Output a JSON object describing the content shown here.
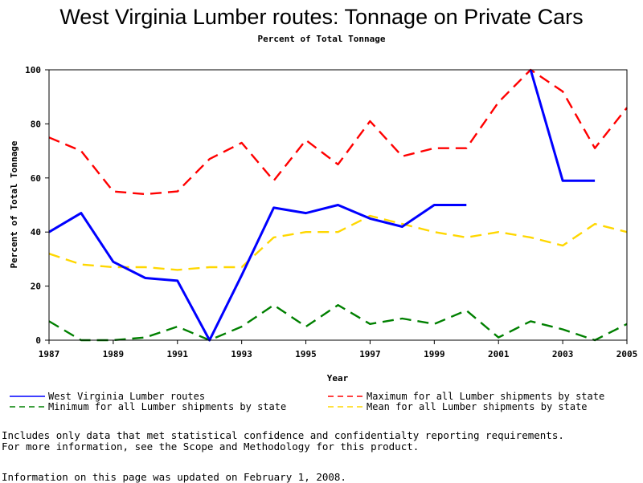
{
  "chart_data": {
    "type": "line",
    "title": "West Virginia Lumber routes: Tonnage on Private Cars",
    "subtitle": "Percent of Total Tonnage",
    "xlabel": "Year",
    "ylabel": "Percent of Total Tonnage",
    "xlim": [
      1987,
      2005
    ],
    "ylim": [
      0,
      100
    ],
    "xticks": [
      1987,
      1989,
      1991,
      1993,
      1995,
      1997,
      1999,
      2001,
      2003,
      2005
    ],
    "yticks": [
      0,
      20,
      40,
      60,
      80,
      100
    ],
    "grid": false,
    "legend_position": "bottom",
    "series": [
      {
        "name": "West Virginia Lumber routes",
        "color": "#0000ff",
        "dash": "solid",
        "x": [
          1987,
          1988,
          1989,
          1990,
          1991,
          1992,
          1993,
          1994,
          1995,
          1996,
          1997,
          1998,
          1999,
          2000,
          null,
          2002,
          2003,
          2004
        ],
        "y": [
          40,
          47,
          29,
          23,
          22,
          0,
          24,
          49,
          47,
          50,
          45,
          42,
          50,
          50,
          null,
          100,
          59,
          59
        ]
      },
      {
        "name": "Maximum for all Lumber shipments by state",
        "color": "#ff0000",
        "dash": "dashed",
        "x": [
          1987,
          1988,
          1989,
          1990,
          1991,
          1992,
          1993,
          1994,
          1995,
          1996,
          1997,
          1998,
          1999,
          2000,
          2001,
          2002,
          2003,
          2004,
          2005
        ],
        "y": [
          75,
          70,
          55,
          54,
          55,
          67,
          73,
          59,
          74,
          65,
          81,
          68,
          71,
          71,
          88,
          100,
          92,
          71,
          86
        ]
      },
      {
        "name": "Minimum for all Lumber shipments by state",
        "color": "#008000",
        "dash": "dashed",
        "x": [
          1987,
          1988,
          1989,
          1990,
          1991,
          1992,
          1993,
          1994,
          1995,
          1996,
          1997,
          1998,
          1999,
          2000,
          2001,
          2002,
          2003,
          2004,
          2005
        ],
        "y": [
          7,
          0,
          0,
          1,
          5,
          0,
          5,
          13,
          5,
          13,
          6,
          8,
          6,
          11,
          1,
          7,
          4,
          0,
          6
        ]
      },
      {
        "name": "Mean for all Lumber shipments by state",
        "color": "#ffd700",
        "dash": "dashed",
        "x": [
          1987,
          1988,
          1989,
          1990,
          1991,
          1992,
          1993,
          1994,
          1995,
          1996,
          1997,
          1998,
          1999,
          2000,
          2001,
          2002,
          2003,
          2004,
          2005
        ],
        "y": [
          32,
          28,
          27,
          27,
          26,
          27,
          27,
          38,
          40,
          40,
          46,
          43,
          40,
          38,
          40,
          38,
          35,
          43,
          40
        ]
      }
    ]
  },
  "notes": [
    "Includes only data that met statistical confidence and confidentialty reporting requirements.",
    "For more information, see the Scope and Methodology for this product.",
    "Information on this page was updated on February 1, 2008."
  ]
}
